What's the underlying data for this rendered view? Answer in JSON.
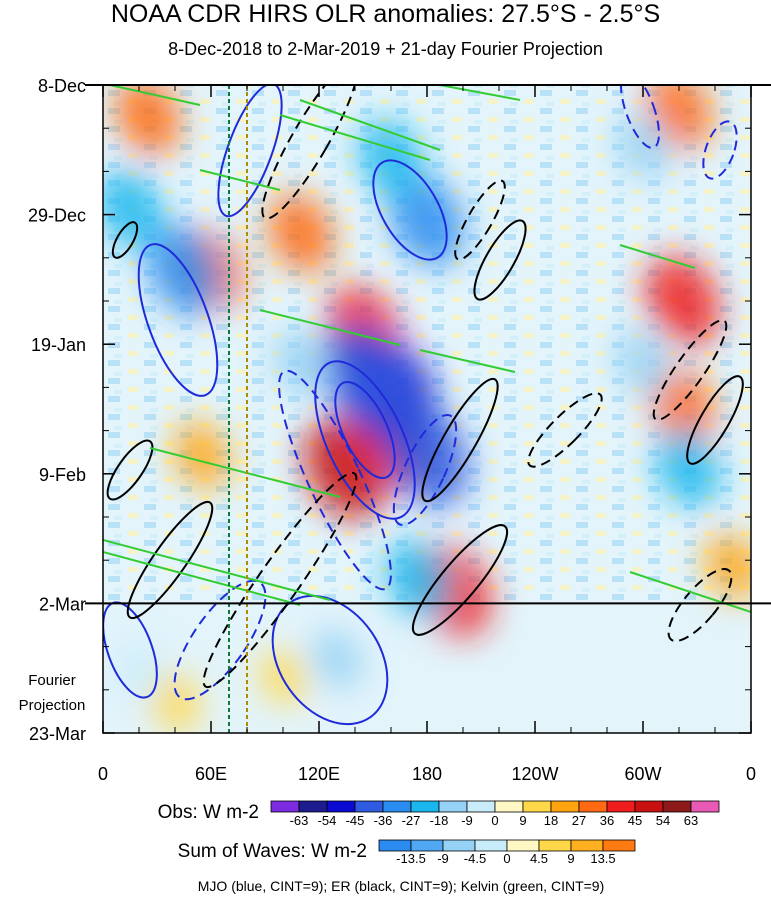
{
  "chart_data": {
    "type": "heatmap",
    "title": "NOAA CDR HIRS OLR anomalies: 27.5°S - 2.5°S",
    "subtitle": "8-Dec-2018 to 2-Mar-2019 + 21-day Fourier Projection",
    "xlabel": "",
    "ylabel": "",
    "x_ticks": [
      "0",
      "60E",
      "120E",
      "180",
      "120W",
      "60W",
      "0"
    ],
    "x_range_deg": [
      0,
      360
    ],
    "y_ticks": [
      "8-Dec",
      "29-Dec",
      "19-Jan",
      "9-Feb",
      "2-Mar",
      "23-Mar"
    ],
    "y_range_days": [
      0,
      105
    ],
    "observation_end_day": 84,
    "projection_label": [
      "Fourier",
      "Projection"
    ],
    "reference_lines_deg": [
      70,
      80
    ],
    "obs_colorbar": {
      "title": "Obs: W m-2",
      "levels": [
        "-63",
        "-54",
        "-45",
        "-36",
        "-27",
        "-18",
        "-9",
        "0",
        "9",
        "18",
        "27",
        "36",
        "45",
        "54",
        "63"
      ],
      "colors": [
        "#7b2ce0",
        "#1c1c8f",
        "#0a0ad2",
        "#2f5be0",
        "#2a8cf0",
        "#19b7ee",
        "#96d2f5",
        "#c8ecfa",
        "#fff8c4",
        "#ffd84a",
        "#ffa40f",
        "#ff6a12",
        "#ee1c1c",
        "#c81010",
        "#8c1a1a",
        "#e85ab4"
      ]
    },
    "waves_colorbar": {
      "title": "Sum of Waves: W m-2",
      "levels": [
        "-13.5",
        "-9",
        "-4.5",
        "0",
        "4.5",
        "9",
        "13.5"
      ],
      "colors": [
        "#2a8cf0",
        "#50a8f2",
        "#96d2f5",
        "#c8ecfa",
        "#fff8c4",
        "#ffd84a",
        "#ffb020",
        "#ff7a10"
      ]
    },
    "footnote": "MJO (blue, CINT=9); ER (black, CINT=9); Kelvin (green, CINT=9)",
    "contour_colors": {
      "MJO": "#1f2ad8",
      "ER": "#000000",
      "Kelvin": "#33cc33"
    },
    "anomaly_centers": [
      {
        "lon": 135,
        "day": 62,
        "value": 45
      },
      {
        "lon": 145,
        "day": 40,
        "value": 36
      },
      {
        "lon": 110,
        "day": 24,
        "value": 27
      },
      {
        "lon": 160,
        "day": 58,
        "value": 36
      },
      {
        "lon": 195,
        "day": 82,
        "value": 36
      },
      {
        "lon": 60,
        "day": 30,
        "value": 27
      },
      {
        "lon": 25,
        "day": 5,
        "value": 27
      },
      {
        "lon": 320,
        "day": 4,
        "value": 27
      },
      {
        "lon": 322,
        "day": 35,
        "value": 36
      },
      {
        "lon": 322,
        "day": 52,
        "value": 27
      },
      {
        "lon": 350,
        "day": 78,
        "value": 18
      },
      {
        "lon": 55,
        "day": 60,
        "value": 18
      },
      {
        "lon": 40,
        "day": 100,
        "value": 13.5
      },
      {
        "lon": 100,
        "day": 96,
        "value": 9
      },
      {
        "lon": 160,
        "day": 50,
        "value": -54
      },
      {
        "lon": 145,
        "day": 47,
        "value": -45
      },
      {
        "lon": 180,
        "day": 60,
        "value": -45
      },
      {
        "lon": 180,
        "day": 22,
        "value": -36
      },
      {
        "lon": 160,
        "day": 12,
        "value": -27
      },
      {
        "lon": 45,
        "day": 30,
        "value": -36
      },
      {
        "lon": 15,
        "day": 20,
        "value": -27
      },
      {
        "lon": 110,
        "day": 45,
        "value": -18
      },
      {
        "lon": 325,
        "day": 62,
        "value": -27
      },
      {
        "lon": 300,
        "day": 45,
        "value": -18
      },
      {
        "lon": 300,
        "day": 10,
        "value": -18
      },
      {
        "lon": 130,
        "day": 93,
        "value": -13.5
      },
      {
        "lon": 20,
        "day": 95,
        "value": -9
      },
      {
        "lon": 175,
        "day": 80,
        "value": -27
      }
    ]
  }
}
